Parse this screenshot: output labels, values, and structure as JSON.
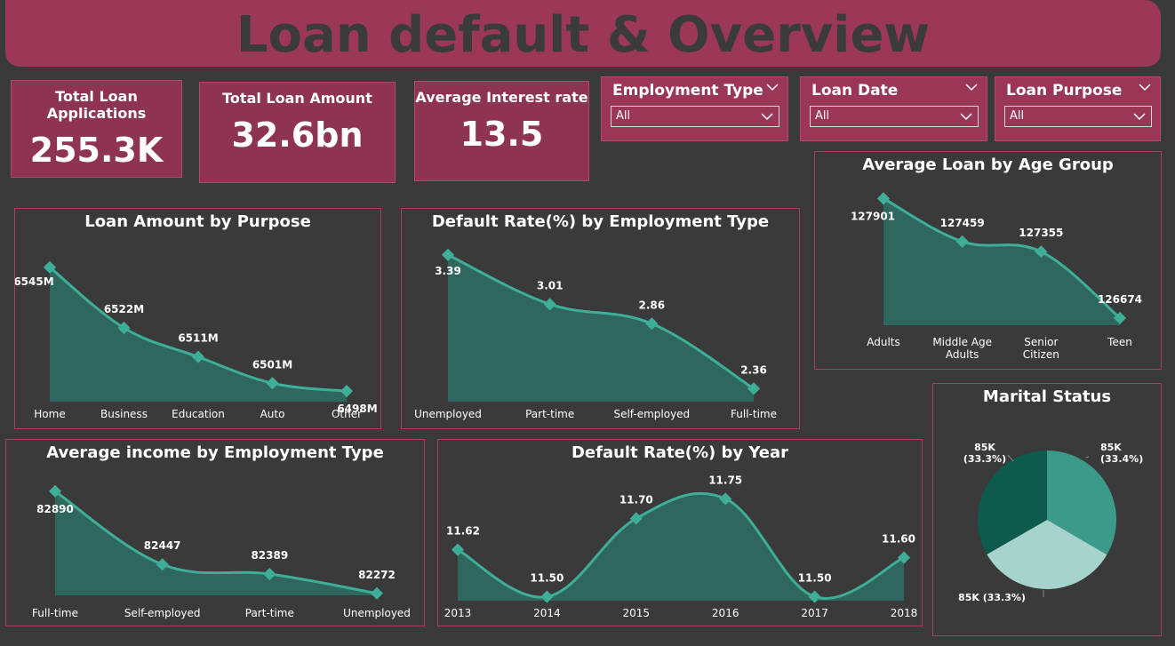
{
  "title": "Loan default & Overview",
  "kpis": [
    {
      "label": "Total Loan Applications",
      "value": "255.3K"
    },
    {
      "label": "Total Loan Amount",
      "value": "32.6bn"
    },
    {
      "label": "Average Interest rate",
      "value": "13.5"
    }
  ],
  "slicers": [
    {
      "title": "Employment Type",
      "value": "All"
    },
    {
      "title": "Loan Date",
      "value": "All"
    },
    {
      "title": "Loan Purpose",
      "value": "All"
    }
  ],
  "colors": {
    "line": "#3fae98",
    "area": "#2f6b62",
    "panel_border": "#a53e60",
    "kpi": "#8e3352"
  },
  "chart_data": [
    {
      "id": "purpose",
      "type": "area",
      "title": "Loan Amount by Purpose",
      "categories": [
        "Home",
        "Business",
        "Education",
        "Auto",
        "Other"
      ],
      "values": [
        6545,
        6522,
        6511,
        6501,
        6498
      ],
      "labels": [
        "6545M",
        "6522M",
        "6511M",
        "6501M",
        "6498M"
      ],
      "ylim": [
        6494,
        6550
      ]
    },
    {
      "id": "employment_default",
      "type": "area",
      "title": "Default Rate(%) by Employment Type",
      "categories": [
        "Unemployed",
        "Part-time",
        "Self-employed",
        "Full-time"
      ],
      "values": [
        3.39,
        3.01,
        2.86,
        2.36
      ],
      "labels": [
        "3.39",
        "3.01",
        "2.86",
        "2.36"
      ],
      "ylim": [
        2.26,
        3.45
      ]
    },
    {
      "id": "age",
      "type": "area",
      "title": "Average Loan by Age Group",
      "categories": [
        "Adults",
        "Middle Age Adults",
        "Senior Citizen",
        "Teen"
      ],
      "values": [
        127901,
        127459,
        127355,
        126674
      ],
      "labels": [
        "127901",
        "127459",
        "127355",
        "126674"
      ],
      "ylim": [
        126600,
        127950
      ]
    },
    {
      "id": "income",
      "type": "area",
      "title": "Average income by Employment Type",
      "categories": [
        "Full-time",
        "Self-employed",
        "Part-time",
        "Unemployed"
      ],
      "values": [
        82890,
        82447,
        82389,
        82272
      ],
      "labels": [
        "82890",
        "82447",
        "82389",
        "82272"
      ],
      "ylim": [
        82260,
        82900
      ]
    },
    {
      "id": "year",
      "type": "area",
      "title": "Default Rate(%) by Year",
      "categories": [
        "2013",
        "2014",
        "2015",
        "2016",
        "2017",
        "2018"
      ],
      "values": [
        11.62,
        11.5,
        11.7,
        11.75,
        11.5,
        11.6
      ],
      "labels": [
        "11.62",
        "11.50",
        "11.70",
        "11.75",
        "11.50",
        "11.60"
      ],
      "ylim": [
        11.49,
        11.76
      ]
    },
    {
      "id": "marital",
      "type": "pie",
      "title": "Marital Status",
      "values": [
        33.4,
        33.3,
        33.3
      ],
      "labels": [
        [
          "85K",
          "(33.4%)"
        ],
        [
          "85K (33.3%)"
        ],
        [
          "85K",
          "(33.3%)"
        ]
      ],
      "colors": [
        "#3c9a8a",
        "#a6d3cc",
        "#0c5b4c"
      ]
    }
  ]
}
